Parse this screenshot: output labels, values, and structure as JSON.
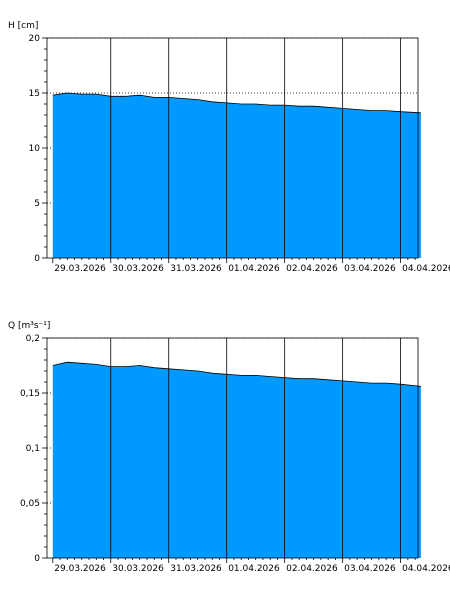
{
  "chart_data": [
    {
      "type": "area",
      "ylabel": "H [cm]",
      "ylim": [
        0,
        20
      ],
      "ytick_labels": [
        "0",
        "5",
        "10",
        "15",
        "20"
      ],
      "x_tick_labels": [
        "29.03.2026",
        "30.03.2026",
        "31.03.2026",
        "01.04.2026",
        "02.04.2026",
        "03.04.2026",
        "04.04.2026"
      ],
      "xlim_days": [
        -0.1,
        6.3
      ],
      "grid": "horizontal dotted, vertical solid",
      "color": "#0099ff",
      "series": [
        {
          "x_days": [
            0,
            0.25,
            0.5,
            0.75,
            1.0,
            1.25,
            1.5,
            1.75,
            2.0,
            2.25,
            2.5,
            2.75,
            3.0,
            3.25,
            3.5,
            3.75,
            4.0,
            4.25,
            4.5,
            4.75,
            5.0,
            5.25,
            5.5,
            5.75,
            6.0,
            6.35
          ],
          "values": [
            14.8,
            15.0,
            14.9,
            14.9,
            14.7,
            14.7,
            14.8,
            14.6,
            14.6,
            14.5,
            14.4,
            14.2,
            14.1,
            14.0,
            14.0,
            13.9,
            13.9,
            13.8,
            13.8,
            13.7,
            13.6,
            13.5,
            13.4,
            13.4,
            13.3,
            13.2
          ]
        }
      ]
    },
    {
      "type": "area",
      "ylabel": "Q [m³s⁻¹]",
      "ylim": [
        0,
        0.2
      ],
      "ytick_labels": [
        "0",
        "0,05",
        "0,1",
        "0,15",
        "0,2"
      ],
      "x_tick_labels": [
        "29.03.2026",
        "30.03.2026",
        "31.03.2026",
        "01.04.2026",
        "02.04.2026",
        "03.04.2026",
        "04.04.2026"
      ],
      "xlim_days": [
        -0.1,
        6.3
      ],
      "grid": "horizontal dotted, vertical solid",
      "color": "#0099ff",
      "series": [
        {
          "x_days": [
            0,
            0.25,
            0.5,
            0.75,
            1.0,
            1.25,
            1.5,
            1.75,
            2.0,
            2.25,
            2.5,
            2.75,
            3.0,
            3.25,
            3.5,
            3.75,
            4.0,
            4.25,
            4.5,
            4.75,
            5.0,
            5.25,
            5.5,
            5.75,
            6.0,
            6.35
          ],
          "values": [
            0.175,
            0.178,
            0.177,
            0.176,
            0.174,
            0.174,
            0.175,
            0.173,
            0.172,
            0.171,
            0.17,
            0.168,
            0.167,
            0.166,
            0.166,
            0.165,
            0.164,
            0.163,
            0.163,
            0.162,
            0.161,
            0.16,
            0.159,
            0.159,
            0.158,
            0.156
          ]
        }
      ]
    }
  ]
}
